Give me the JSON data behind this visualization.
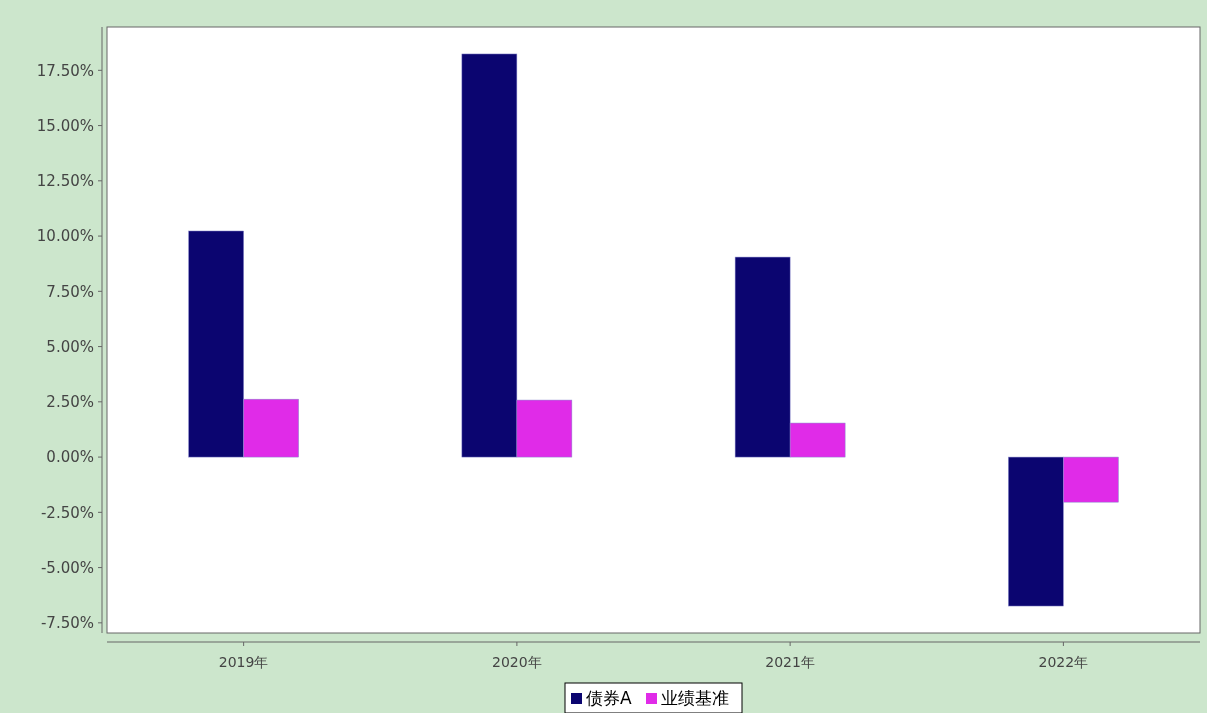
{
  "chart_data": {
    "type": "bar",
    "categories": [
      "2019年",
      "2020年",
      "2021年",
      "2022年"
    ],
    "series": [
      {
        "name": "债券A",
        "color": "#0b0570",
        "values": [
          10.23,
          18.24,
          9.05,
          -6.74
        ]
      },
      {
        "name": "业绩基准",
        "color": "#e02be8",
        "values": [
          2.62,
          2.58,
          1.54,
          -2.04
        ]
      }
    ],
    "ylim": [
      -7.96,
      19.46
    ],
    "yticks": [
      {
        "value": -7.5,
        "label": "-7.50%"
      },
      {
        "value": -5,
        "label": "-5.00%"
      },
      {
        "value": -2.5,
        "label": "-2.50%"
      },
      {
        "value": 0,
        "label": "0.00%"
      },
      {
        "value": 2.5,
        "label": "2.50%"
      },
      {
        "value": 5,
        "label": "5.00%"
      },
      {
        "value": 7.5,
        "label": "7.50%"
      },
      {
        "value": 10,
        "label": "10.00%"
      },
      {
        "value": 12.5,
        "label": "12.50%"
      },
      {
        "value": 15,
        "label": "15.00%"
      },
      {
        "value": 17.5,
        "label": "17.50%"
      }
    ],
    "grid": false,
    "legend": "bottom"
  }
}
